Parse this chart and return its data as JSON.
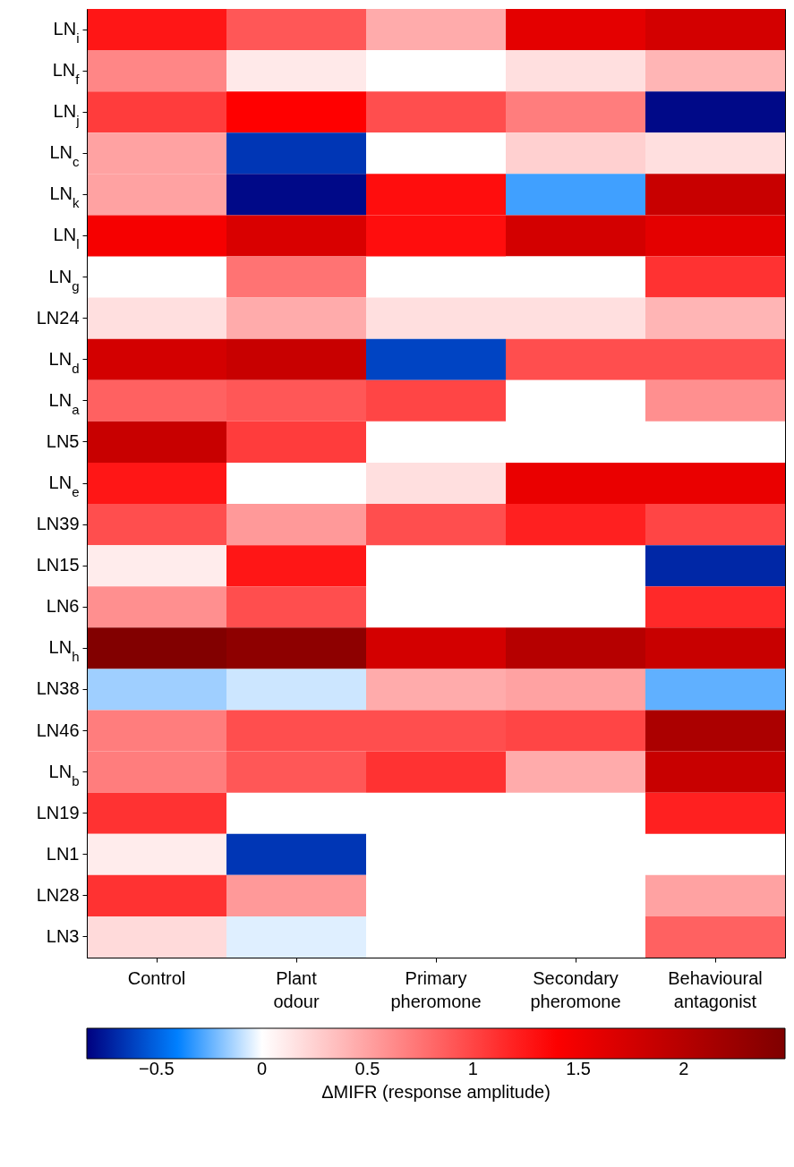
{
  "chart_data": {
    "type": "heatmap",
    "clabel": "ΔMIFR (response amplitude)",
    "categories": [
      "Control",
      "Plant odour",
      "Primary pheromone",
      "Secondary pheromone",
      "Behavioural antagonist"
    ],
    "y_categories": [
      "LN$_{i}$",
      "LN$_{f}$",
      "LN$_{j}$",
      "LN$_{c}$",
      "LN$_{k}$",
      "LN$_{l}$",
      "LN$_{g}$",
      "LN24",
      "LN$_{d}$",
      "LN$_{a}$",
      "LN5",
      "LN$_{e}$",
      "LN39",
      "LN15",
      "LN6",
      "LN$_{h}$",
      "LN38",
      "LN46",
      "LN$_{b}$",
      "LN19",
      "LN1",
      "LN28",
      "LN3"
    ],
    "cells": [
      [
        1.25,
        0.9,
        0.45,
        1.6,
        1.75
      ],
      [
        0.65,
        0.12,
        0,
        0.17,
        0.4
      ],
      [
        1.05,
        1.37,
        0.95,
        0.7,
        -0.8
      ],
      [
        0.5,
        -0.65,
        0,
        0.25,
        0.17
      ],
      [
        0.5,
        -0.8,
        1.3,
        -0.3,
        1.85
      ],
      [
        1.45,
        1.7,
        1.3,
        1.75,
        1.6
      ],
      [
        null,
        0.75,
        null,
        0,
        1.1
      ],
      [
        0.17,
        0.45,
        0.17,
        0.17,
        0.4
      ],
      [
        1.75,
        1.85,
        -0.6,
        0.95,
        0.95
      ],
      [
        0.85,
        0.9,
        1.0,
        0,
        0.6
      ],
      [
        1.85,
        1.05,
        null,
        null,
        null
      ],
      [
        1.25,
        0,
        0.17,
        1.55,
        1.55
      ],
      [
        0.95,
        0.55,
        0.95,
        1.2,
        1.0
      ],
      [
        0.1,
        1.25,
        null,
        null,
        -0.7
      ],
      [
        0.6,
        0.95,
        null,
        null,
        1.15
      ],
      [
        2.45,
        2.35,
        1.75,
        2.0,
        1.85
      ],
      [
        -0.15,
        -0.08,
        0.45,
        0.5,
        -0.25
      ],
      [
        0.7,
        0.95,
        0.95,
        1.0,
        2.1
      ],
      [
        0.7,
        0.9,
        1.1,
        0.45,
        1.85
      ],
      [
        1.1,
        null,
        null,
        null,
        1.2
      ],
      [
        0.1,
        -0.65,
        null,
        null,
        null
      ],
      [
        1.1,
        0.55,
        null,
        null,
        0.5
      ],
      [
        0.2,
        -0.05,
        null,
        null,
        0.85
      ]
    ],
    "clim": [
      -0.83,
      2.48
    ],
    "cticks": [
      -0.5,
      0,
      0.5,
      1,
      1.5,
      2
    ]
  }
}
